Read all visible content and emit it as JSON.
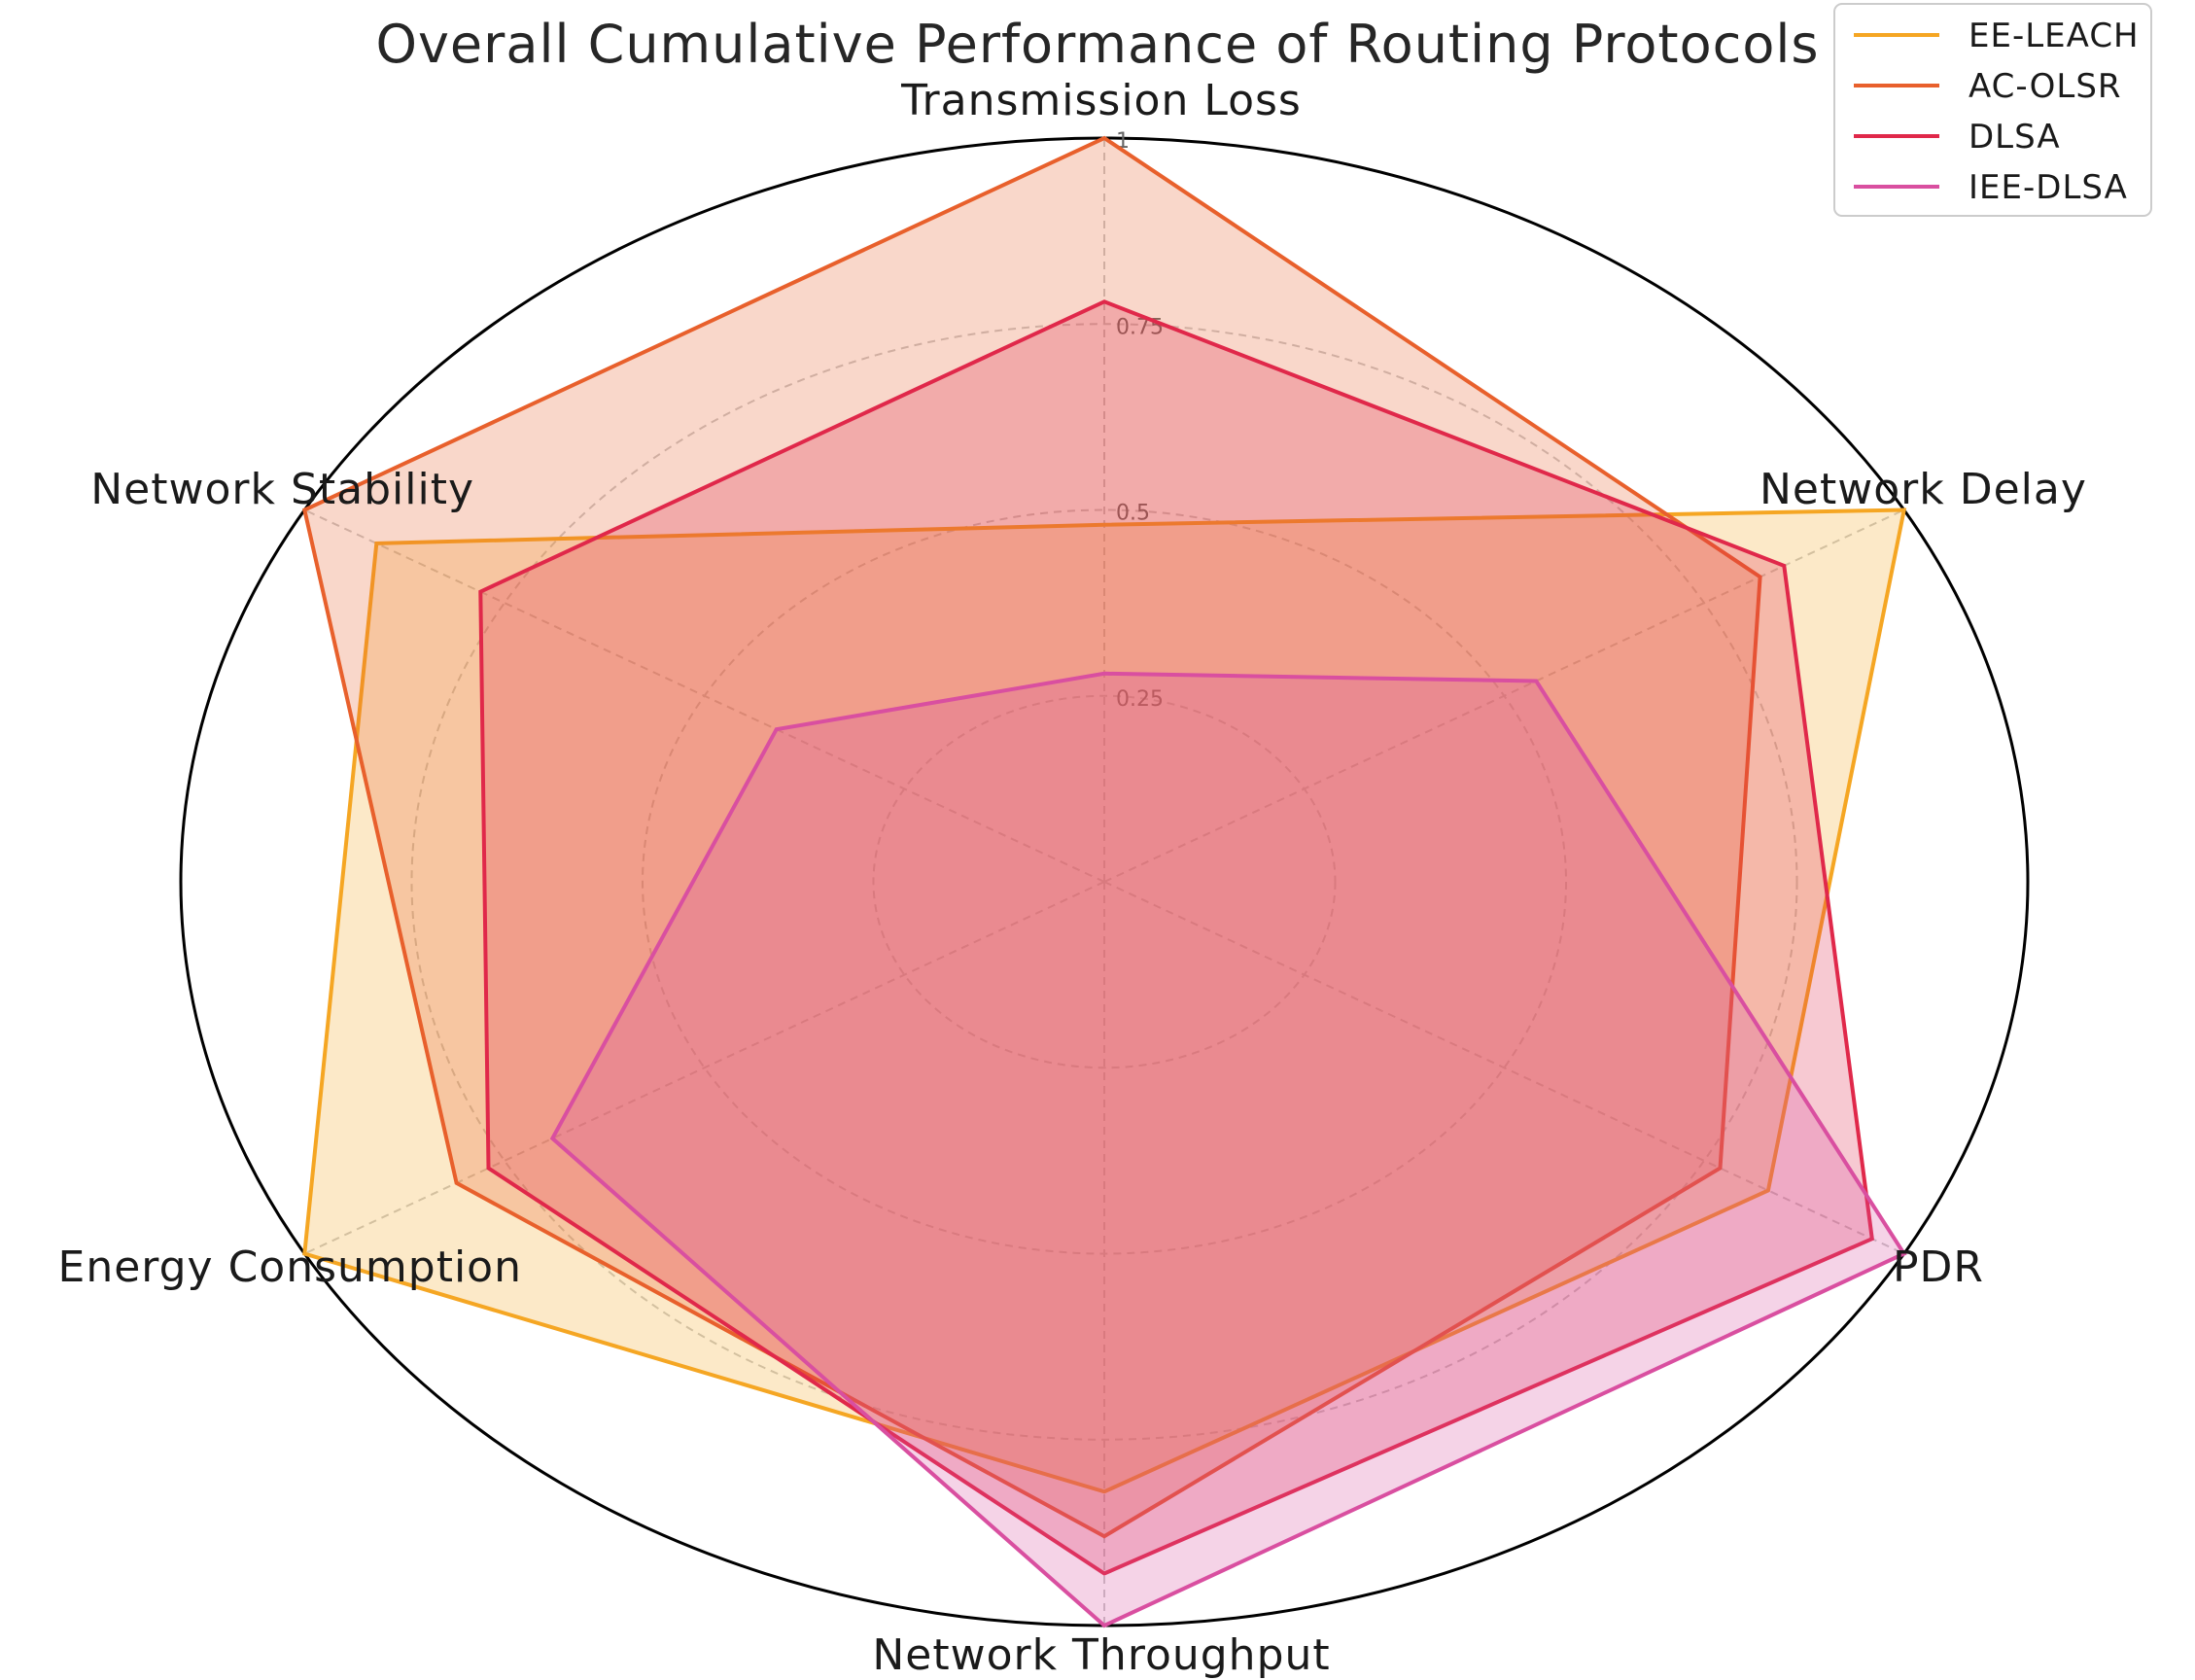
{
  "chart_data": {
    "type": "radar",
    "title": "Overall Cumulative Performance of Routing Protocols",
    "axes": [
      "Transmission Loss",
      "Network Delay",
      "PDR",
      "Network Throughput",
      "Energy Consumption",
      "Network Stability"
    ],
    "rlim": [
      0,
      1
    ],
    "r_ticks": [
      0.25,
      0.5,
      0.75,
      1
    ],
    "r_tick_labels": [
      "0.25",
      "0.5",
      "0.75",
      "1"
    ],
    "grid": true,
    "legend": {
      "placement": "top-right"
    },
    "series": [
      {
        "name": "EE-LEACH",
        "color": "#f5a623",
        "values": [
          0.48,
          1.0,
          0.83,
          0.82,
          1.0,
          0.91
        ]
      },
      {
        "name": "AC-OLSR",
        "color": "#e8602c",
        "values": [
          1.0,
          0.82,
          0.77,
          0.88,
          0.81,
          1.0
        ]
      },
      {
        "name": "DLSA",
        "color": "#e0284a",
        "values": [
          0.78,
          0.85,
          0.96,
          0.93,
          0.77,
          0.78
        ]
      },
      {
        "name": "IEE-DLSA",
        "color": "#d94fa0",
        "values": [
          0.28,
          0.54,
          1.0,
          1.0,
          0.69,
          0.41
        ]
      }
    ]
  }
}
